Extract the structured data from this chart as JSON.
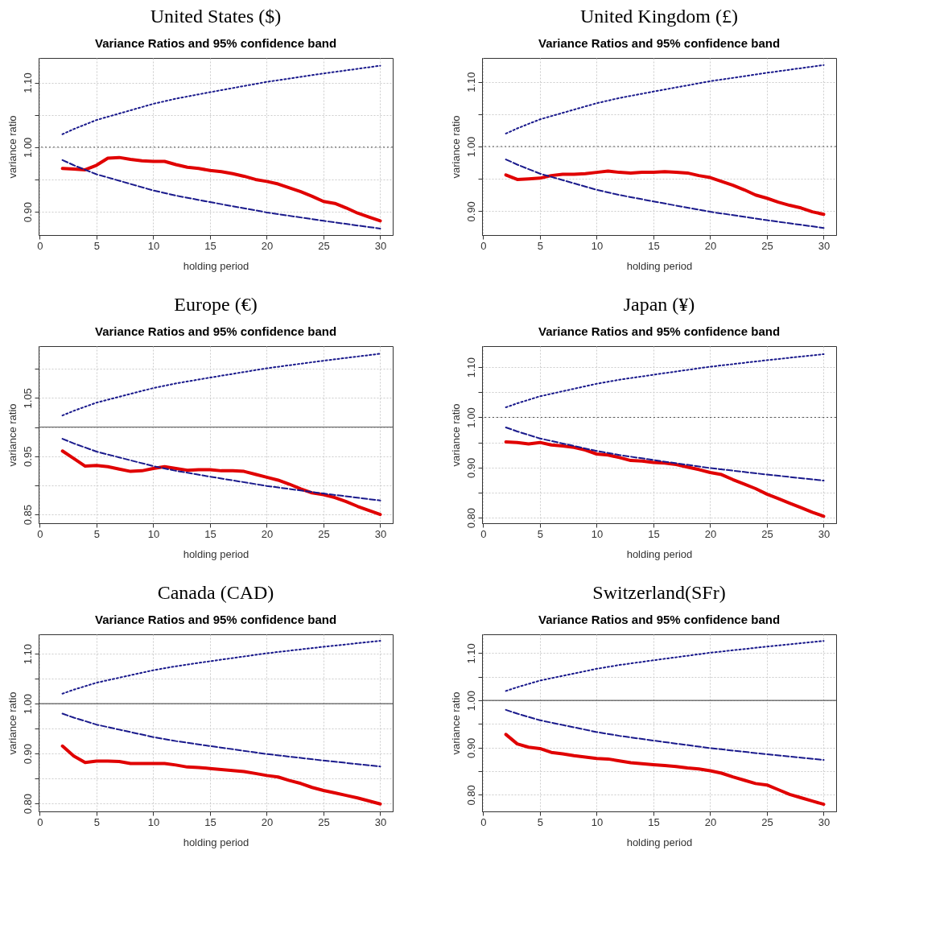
{
  "chart_data": [
    {
      "type": "line",
      "title": "United States ($)",
      "subtitle": "Variance Ratios and 95% confidence band",
      "xlabel": "holding period",
      "ylabel": "variance ratio",
      "grid": true,
      "x": [
        2,
        3,
        4,
        5,
        6,
        7,
        8,
        9,
        10,
        11,
        12,
        13,
        14,
        15,
        16,
        17,
        18,
        19,
        20,
        21,
        22,
        23,
        24,
        25,
        26,
        27,
        28,
        29,
        30
      ],
      "xlim": [
        -0.1,
        31.1
      ],
      "xticks": [
        0,
        5,
        10,
        15,
        20,
        25,
        30
      ],
      "ylim": [
        0.864,
        1.138
      ],
      "yticks": [
        {
          "value": 0.9,
          "label": "0.90"
        },
        {
          "value": 0.95,
          "label": null
        },
        {
          "value": 1.0,
          "label": "1.00"
        },
        {
          "value": 1.05,
          "label": null
        },
        {
          "value": 1.1,
          "label": "1.10"
        }
      ],
      "ref_lines": [
        {
          "axis": "y",
          "value": 1.0,
          "color": "#555555",
          "line_style": "dotted"
        }
      ],
      "series": [
        {
          "color": "#e00000",
          "line_style": "solid",
          "values": [
            0.967,
            0.966,
            0.965,
            0.972,
            0.983,
            0.984,
            0.981,
            0.979,
            0.978,
            0.978,
            0.973,
            0.969,
            0.967,
            0.964,
            0.962,
            0.959,
            0.955,
            0.95,
            0.947,
            0.943,
            0.937,
            0.931,
            0.924,
            0.916,
            0.913,
            0.906,
            0.898,
            0.892,
            0.886
          ]
        },
        {
          "color": "#1a1a8c",
          "line_style": "dotted",
          "x": [
            2,
            3,
            4,
            5,
            7,
            10,
            12,
            15,
            20,
            25,
            30
          ],
          "values": [
            1.02,
            1.028,
            1.035,
            1.042,
            1.052,
            1.067,
            1.075,
            1.085,
            1.101,
            1.114,
            1.126
          ]
        },
        {
          "color": "#1a1a8c",
          "line_style": "dashed",
          "x": [
            2,
            3,
            4,
            5,
            7,
            10,
            12,
            15,
            20,
            25,
            30
          ],
          "values": [
            0.98,
            0.972,
            0.965,
            0.958,
            0.948,
            0.933,
            0.925,
            0.915,
            0.899,
            0.886,
            0.874
          ]
        }
      ]
    },
    {
      "type": "line",
      "title": "United Kingdom (£)",
      "subtitle": "Variance Ratios and 95% confidence band",
      "xlabel": "holding period",
      "ylabel": "variance ratio",
      "grid": true,
      "x": [
        2,
        3,
        4,
        5,
        6,
        7,
        8,
        9,
        10,
        11,
        12,
        13,
        14,
        15,
        16,
        17,
        18,
        19,
        20,
        21,
        22,
        23,
        24,
        25,
        26,
        27,
        28,
        29,
        30
      ],
      "xlim": [
        -0.1,
        31.1
      ],
      "xticks": [
        0,
        5,
        10,
        15,
        20,
        25,
        30
      ],
      "ylim": [
        0.863,
        1.137
      ],
      "yticks": [
        {
          "value": 0.9,
          "label": "0.90"
        },
        {
          "value": 0.95,
          "label": null
        },
        {
          "value": 1.0,
          "label": "1.00"
        },
        {
          "value": 1.05,
          "label": null
        },
        {
          "value": 1.1,
          "label": "1.10"
        }
      ],
      "ref_lines": [
        {
          "axis": "y",
          "value": 1.0,
          "color": "#555555",
          "line_style": "dotted"
        }
      ],
      "series": [
        {
          "color": "#e00000",
          "line_style": "solid",
          "values": [
            0.956,
            0.949,
            0.95,
            0.951,
            0.955,
            0.957,
            0.957,
            0.958,
            0.96,
            0.962,
            0.96,
            0.959,
            0.96,
            0.96,
            0.961,
            0.96,
            0.959,
            0.955,
            0.952,
            0.946,
            0.94,
            0.933,
            0.925,
            0.92,
            0.914,
            0.909,
            0.905,
            0.899,
            0.895
          ]
        },
        {
          "color": "#1a1a8c",
          "line_style": "dotted",
          "x": [
            2,
            3,
            4,
            5,
            7,
            10,
            12,
            15,
            20,
            25,
            30
          ],
          "values": [
            1.02,
            1.028,
            1.035,
            1.042,
            1.052,
            1.067,
            1.075,
            1.085,
            1.101,
            1.114,
            1.126
          ]
        },
        {
          "color": "#1a1a8c",
          "line_style": "dashed",
          "x": [
            2,
            3,
            4,
            5,
            7,
            10,
            12,
            15,
            20,
            25,
            30
          ],
          "values": [
            0.98,
            0.972,
            0.965,
            0.958,
            0.948,
            0.933,
            0.925,
            0.915,
            0.899,
            0.886,
            0.874
          ]
        }
      ]
    },
    {
      "type": "line",
      "title": "Europe (€)",
      "subtitle": "Variance Ratios and 95% confidence band",
      "xlabel": "holding period",
      "ylabel": "variance ratio",
      "grid": true,
      "x": [
        2,
        3,
        4,
        5,
        6,
        7,
        8,
        9,
        10,
        11,
        12,
        13,
        14,
        15,
        16,
        17,
        18,
        19,
        20,
        21,
        22,
        23,
        24,
        25,
        26,
        27,
        28,
        29,
        30
      ],
      "xlim": [
        -0.1,
        31.1
      ],
      "xticks": [
        0,
        5,
        10,
        15,
        20,
        25,
        30
      ],
      "ylim": [
        0.835,
        1.139
      ],
      "yticks": [
        0.85,
        {
          "value": 0.9,
          "label": null
        },
        0.95,
        {
          "value": 1.0,
          "label": null
        },
        1.05,
        {
          "value": 1.1,
          "label": null
        }
      ],
      "ref_lines": [
        {
          "axis": "y",
          "value": 1.0,
          "color": "#555555",
          "line_style": "solid"
        }
      ],
      "series": [
        {
          "color": "#e00000",
          "line_style": "solid",
          "values": [
            0.959,
            0.946,
            0.933,
            0.934,
            0.932,
            0.928,
            0.924,
            0.925,
            0.929,
            0.932,
            0.929,
            0.926,
            0.927,
            0.927,
            0.925,
            0.925,
            0.924,
            0.919,
            0.914,
            0.909,
            0.902,
            0.894,
            0.887,
            0.884,
            0.879,
            0.872,
            0.864,
            0.857,
            0.85
          ]
        },
        {
          "color": "#1a1a8c",
          "line_style": "dotted",
          "x": [
            2,
            3,
            4,
            5,
            7,
            10,
            12,
            15,
            20,
            25,
            30
          ],
          "values": [
            1.02,
            1.028,
            1.035,
            1.042,
            1.052,
            1.067,
            1.075,
            1.085,
            1.101,
            1.114,
            1.126
          ]
        },
        {
          "color": "#1a1a8c",
          "line_style": "dashed",
          "x": [
            2,
            3,
            4,
            5,
            7,
            10,
            12,
            15,
            20,
            25,
            30
          ],
          "values": [
            0.98,
            0.972,
            0.965,
            0.958,
            0.948,
            0.933,
            0.925,
            0.915,
            0.899,
            0.886,
            0.874
          ]
        }
      ]
    },
    {
      "type": "line",
      "title": "Japan (¥)",
      "subtitle": "Variance Ratios and 95% confidence band",
      "xlabel": "holding period",
      "ylabel": "variance ratio",
      "grid": true,
      "x": [
        2,
        3,
        4,
        5,
        6,
        7,
        8,
        9,
        10,
        11,
        12,
        13,
        14,
        15,
        16,
        17,
        18,
        19,
        20,
        21,
        22,
        23,
        24,
        25,
        26,
        27,
        28,
        29,
        30
      ],
      "xlim": [
        -0.1,
        31.1
      ],
      "xticks": [
        0,
        5,
        10,
        15,
        20,
        25,
        30
      ],
      "ylim": [
        0.789,
        1.142
      ],
      "yticks": [
        {
          "value": 0.8,
          "label": "0.80"
        },
        {
          "value": 0.85,
          "label": null
        },
        {
          "value": 0.9,
          "label": "0.90"
        },
        {
          "value": 0.95,
          "label": null
        },
        {
          "value": 1.0,
          "label": "1.00"
        },
        {
          "value": 1.05,
          "label": null
        },
        {
          "value": 1.1,
          "label": "1.10"
        }
      ],
      "ref_lines": [
        {
          "axis": "y",
          "value": 1.0,
          "color": "#555555",
          "line_style": "dotted"
        }
      ],
      "series": [
        {
          "color": "#e00000",
          "line_style": "solid",
          "values": [
            0.951,
            0.95,
            0.947,
            0.95,
            0.945,
            0.943,
            0.94,
            0.935,
            0.927,
            0.925,
            0.92,
            0.914,
            0.913,
            0.91,
            0.909,
            0.906,
            0.901,
            0.896,
            0.89,
            0.886,
            0.876,
            0.867,
            0.858,
            0.847,
            0.838,
            0.829,
            0.82,
            0.811,
            0.803
          ]
        },
        {
          "color": "#1a1a8c",
          "line_style": "dotted",
          "x": [
            2,
            3,
            4,
            5,
            7,
            10,
            12,
            15,
            20,
            25,
            30
          ],
          "values": [
            1.02,
            1.028,
            1.035,
            1.042,
            1.052,
            1.067,
            1.075,
            1.085,
            1.101,
            1.114,
            1.126
          ]
        },
        {
          "color": "#1a1a8c",
          "line_style": "dashed",
          "x": [
            2,
            3,
            4,
            5,
            7,
            10,
            12,
            15,
            20,
            25,
            30
          ],
          "values": [
            0.98,
            0.972,
            0.965,
            0.958,
            0.948,
            0.933,
            0.925,
            0.915,
            0.899,
            0.886,
            0.874
          ]
        }
      ]
    },
    {
      "type": "line",
      "title": "Canada (CAD)",
      "subtitle": "Variance Ratios and 95% confidence band",
      "xlabel": "holding period",
      "ylabel": "variance ratio",
      "grid": true,
      "x": [
        2,
        3,
        4,
        5,
        6,
        7,
        8,
        9,
        10,
        11,
        12,
        13,
        14,
        15,
        16,
        17,
        18,
        19,
        20,
        21,
        22,
        23,
        24,
        25,
        26,
        27,
        28,
        29,
        30
      ],
      "xlim": [
        -0.1,
        31.1
      ],
      "xticks": [
        0,
        5,
        10,
        15,
        20,
        25,
        30
      ],
      "ylim": [
        0.784,
        1.139
      ],
      "yticks": [
        {
          "value": 0.8,
          "label": "0.80"
        },
        {
          "value": 0.85,
          "label": null
        },
        {
          "value": 0.9,
          "label": "0.90"
        },
        {
          "value": 0.95,
          "label": null
        },
        {
          "value": 1.0,
          "label": "1.00"
        },
        {
          "value": 1.05,
          "label": null
        },
        {
          "value": 1.1,
          "label": "1.10"
        }
      ],
      "ref_lines": [
        {
          "axis": "y",
          "value": 1.0,
          "color": "#333333",
          "line_style": "solid"
        }
      ],
      "series": [
        {
          "color": "#e00000",
          "line_style": "solid",
          "values": [
            0.915,
            0.895,
            0.882,
            0.885,
            0.885,
            0.884,
            0.88,
            0.88,
            0.88,
            0.88,
            0.877,
            0.873,
            0.872,
            0.87,
            0.868,
            0.866,
            0.864,
            0.86,
            0.856,
            0.853,
            0.846,
            0.84,
            0.832,
            0.826,
            0.821,
            0.816,
            0.811,
            0.805,
            0.799
          ]
        },
        {
          "color": "#1a1a8c",
          "line_style": "dotted",
          "x": [
            2,
            3,
            4,
            5,
            7,
            10,
            12,
            15,
            20,
            25,
            30
          ],
          "values": [
            1.02,
            1.028,
            1.035,
            1.042,
            1.052,
            1.067,
            1.075,
            1.085,
            1.101,
            1.114,
            1.126
          ]
        },
        {
          "color": "#1a1a8c",
          "line_style": "dashed",
          "x": [
            2,
            3,
            4,
            5,
            7,
            10,
            12,
            15,
            20,
            25,
            30
          ],
          "values": [
            0.98,
            0.972,
            0.965,
            0.958,
            0.948,
            0.933,
            0.925,
            0.915,
            0.899,
            0.886,
            0.874
          ]
        }
      ]
    },
    {
      "type": "line",
      "title": "Switzerland(SFr)",
      "subtitle": "Variance Ratios and 95% confidence band",
      "xlabel": "holding period",
      "ylabel": "variance ratio",
      "grid": true,
      "x": [
        2,
        3,
        4,
        5,
        6,
        7,
        8,
        9,
        10,
        11,
        12,
        13,
        14,
        15,
        16,
        17,
        18,
        19,
        20,
        21,
        22,
        23,
        24,
        25,
        26,
        27,
        28,
        29,
        30
      ],
      "xlim": [
        -0.1,
        31.1
      ],
      "xticks": [
        0,
        5,
        10,
        15,
        20,
        25,
        30
      ],
      "ylim": [
        0.765,
        1.14
      ],
      "yticks": [
        {
          "value": 0.8,
          "label": "0.80"
        },
        {
          "value": 0.85,
          "label": null
        },
        {
          "value": 0.9,
          "label": "0.90"
        },
        {
          "value": 0.95,
          "label": null
        },
        {
          "value": 1.0,
          "label": "1.00"
        },
        {
          "value": 1.05,
          "label": null
        },
        {
          "value": 1.1,
          "label": "1.10"
        }
      ],
      "ref_lines": [
        {
          "axis": "y",
          "value": 1.0,
          "color": "#333333",
          "line_style": "solid"
        }
      ],
      "series": [
        {
          "color": "#e00000",
          "line_style": "solid",
          "values": [
            0.928,
            0.908,
            0.901,
            0.898,
            0.89,
            0.887,
            0.883,
            0.88,
            0.877,
            0.876,
            0.872,
            0.868,
            0.866,
            0.864,
            0.862,
            0.86,
            0.857,
            0.855,
            0.851,
            0.846,
            0.838,
            0.831,
            0.824,
            0.821,
            0.811,
            0.801,
            0.794,
            0.787,
            0.78
          ]
        },
        {
          "color": "#1a1a8c",
          "line_style": "dotted",
          "x": [
            2,
            3,
            4,
            5,
            7,
            10,
            12,
            15,
            20,
            25,
            30
          ],
          "values": [
            1.02,
            1.028,
            1.035,
            1.042,
            1.052,
            1.067,
            1.075,
            1.085,
            1.101,
            1.114,
            1.126
          ]
        },
        {
          "color": "#1a1a8c",
          "line_style": "dashed",
          "x": [
            2,
            3,
            4,
            5,
            7,
            10,
            12,
            15,
            20,
            25,
            30
          ],
          "values": [
            0.98,
            0.972,
            0.965,
            0.958,
            0.948,
            0.933,
            0.925,
            0.915,
            0.899,
            0.886,
            0.874
          ]
        }
      ]
    }
  ]
}
